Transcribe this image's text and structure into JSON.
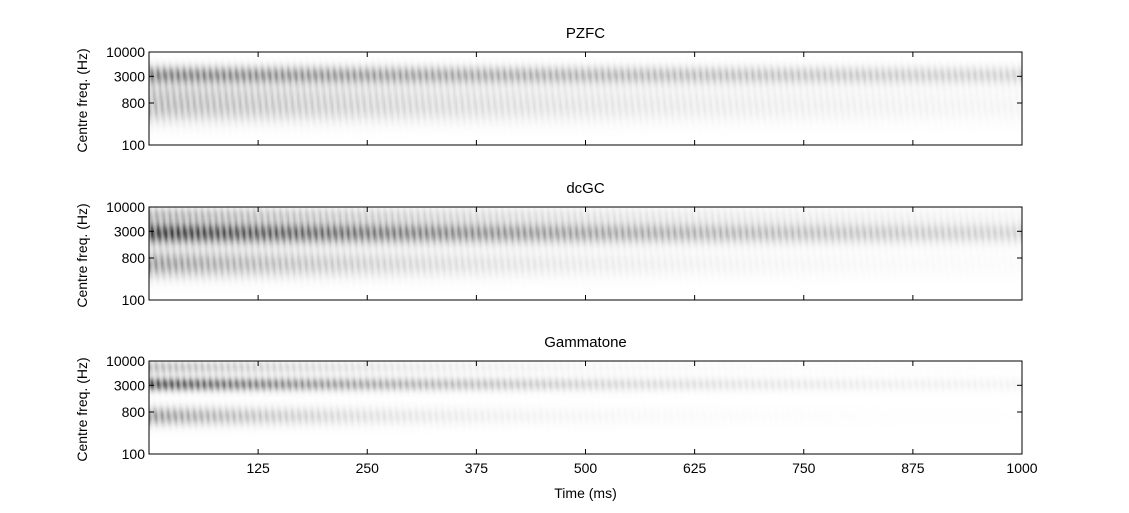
{
  "figure": {
    "xlabel": "Time (ms)",
    "ylabel": "Centre freq. (Hz)"
  },
  "chart_data": [
    {
      "type": "heatmap",
      "title": "PZFC",
      "xlabel": "",
      "ylabel": "Centre freq. (Hz)",
      "xlim": [
        0,
        1000
      ],
      "ylim": [
        100,
        10000
      ],
      "yscale": "log",
      "xticks": [
        125,
        250,
        375,
        500,
        625,
        750,
        875,
        1000
      ],
      "yticks": [
        100,
        800,
        3000,
        10000
      ],
      "colormap": "grayscale-inverted",
      "bands": [
        {
          "centre_hz": 3200,
          "peak_intensity": 0.55,
          "decay_ms": 900,
          "spread": 0.55
        },
        {
          "centre_hz": 650,
          "peak_intensity": 0.3,
          "decay_ms": 500,
          "spread": 0.9
        },
        {
          "centre_hz": 1400,
          "peak_intensity": 0.15,
          "decay_ms": 400,
          "spread": 0.6
        }
      ]
    },
    {
      "type": "heatmap",
      "title": "dcGC",
      "xlabel": "",
      "ylabel": "Centre freq. (Hz)",
      "xlim": [
        0,
        1000
      ],
      "ylim": [
        100,
        10000
      ],
      "yscale": "log",
      "xticks": [
        125,
        250,
        375,
        500,
        625,
        750,
        875,
        1000
      ],
      "yticks": [
        100,
        800,
        3000,
        10000
      ],
      "colormap": "grayscale-inverted",
      "bands": [
        {
          "centre_hz": 2800,
          "peak_intensity": 0.85,
          "decay_ms": 650,
          "spread": 0.65
        },
        {
          "centre_hz": 7000,
          "peak_intensity": 0.3,
          "decay_ms": 450,
          "spread": 0.5
        },
        {
          "centre_hz": 600,
          "peak_intensity": 0.45,
          "decay_ms": 300,
          "spread": 0.8
        }
      ]
    },
    {
      "type": "heatmap",
      "title": "Gammatone",
      "xlabel": "Time (ms)",
      "ylabel": "Centre freq. (Hz)",
      "xlim": [
        0,
        1000
      ],
      "ylim": [
        100,
        10000
      ],
      "yscale": "log",
      "xticks": [
        125,
        250,
        375,
        500,
        625,
        750,
        875,
        1000
      ],
      "yticks": [
        100,
        800,
        3000,
        10000
      ],
      "colormap": "grayscale-inverted",
      "bands": [
        {
          "centre_hz": 3200,
          "peak_intensity": 0.75,
          "decay_ms": 350,
          "spread": 0.4
        },
        {
          "centre_hz": 7500,
          "peak_intensity": 0.3,
          "decay_ms": 250,
          "spread": 0.45
        },
        {
          "centre_hz": 650,
          "peak_intensity": 0.45,
          "decay_ms": 200,
          "spread": 0.55
        }
      ]
    }
  ]
}
